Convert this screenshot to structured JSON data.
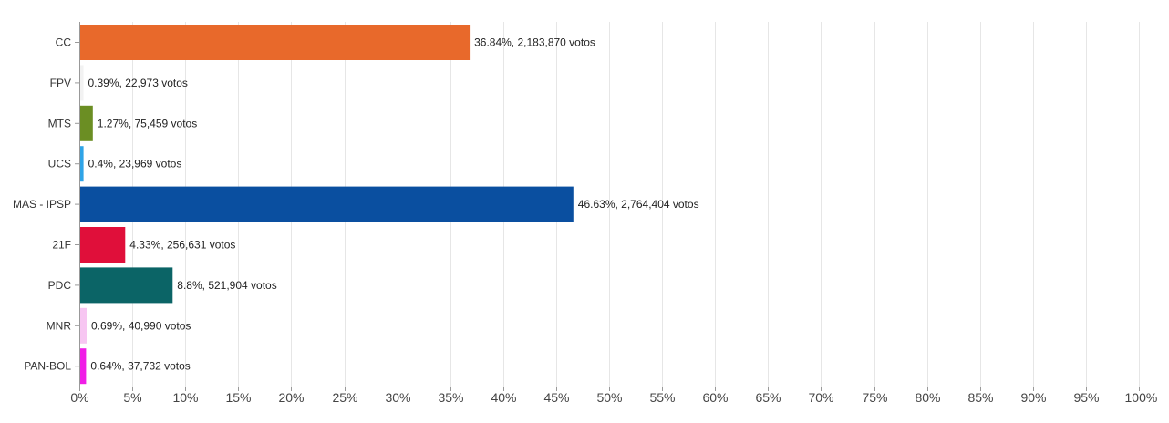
{
  "chart_data": {
    "type": "bar",
    "orientation": "horizontal",
    "title": "",
    "xlabel": "",
    "ylabel": "",
    "xlim": [
      0,
      100
    ],
    "x_ticks": [
      "0%",
      "5%",
      "10%",
      "15%",
      "20%",
      "25%",
      "30%",
      "35%",
      "40%",
      "45%",
      "50%",
      "55%",
      "60%",
      "65%",
      "70%",
      "75%",
      "80%",
      "85%",
      "90%",
      "95%",
      "100%"
    ],
    "categories": [
      "CC",
      "FPV",
      "MTS",
      "UCS",
      "MAS - IPSP",
      "21F",
      "PDC",
      "MNR",
      "PAN-BOL"
    ],
    "values": [
      36.84,
      0.39,
      1.27,
      0.4,
      46.63,
      4.33,
      8.8,
      0.69,
      0.64
    ],
    "labels": [
      "36.84%,  2,183,870 votos",
      "0.39%,  22,973 votos",
      "1.27%,  75,459 votos",
      "0.4%,  23,969 votos",
      "46.63%,  2,764,404 votos",
      "4.33%,  256,631 votos",
      "8.8%,  521,904 votos",
      "0.69%,  40,990 votos",
      "0.64%,  37,732 votos"
    ],
    "colors": [
      "#e8692b",
      "#f2f2f2",
      "#6b8e23",
      "#2fa4e7",
      "#0a4fa0",
      "#e00f3a",
      "#0b6466",
      "#f7c6f2",
      "#f01ee6"
    ],
    "grid": true,
    "legend": "none"
  }
}
